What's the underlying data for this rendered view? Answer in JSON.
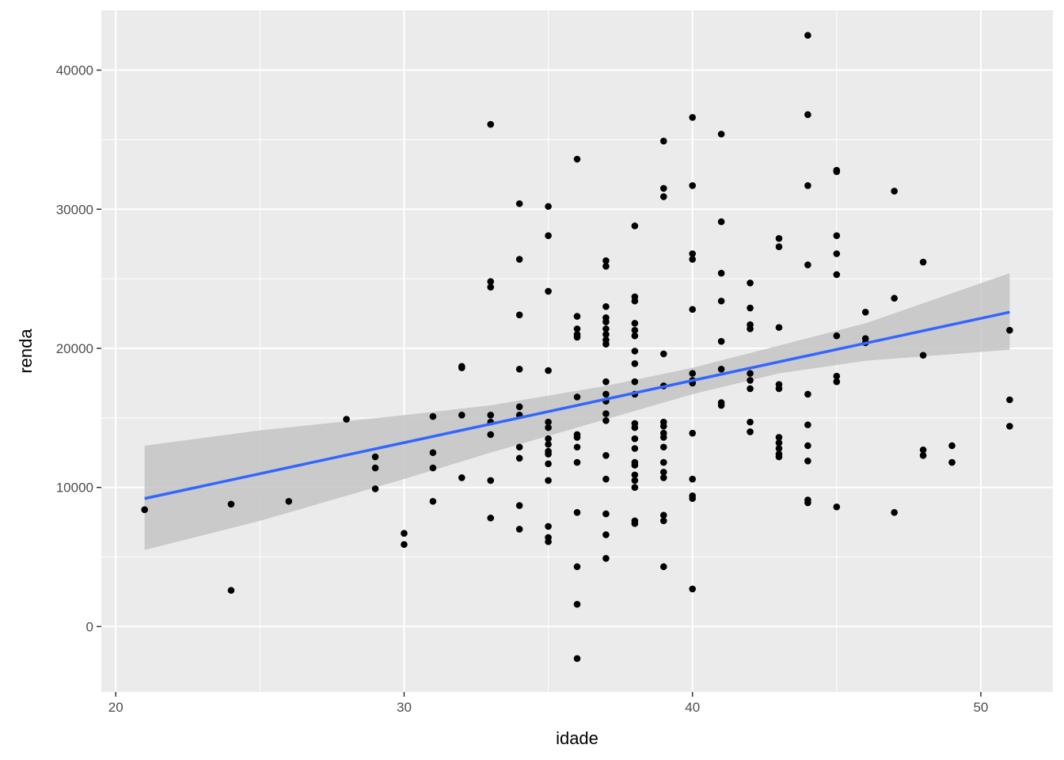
{
  "chart_data": {
    "type": "scatter",
    "title": "",
    "xlabel": "idade",
    "ylabel": "renda",
    "xlim": [
      19.5,
      52.5
    ],
    "ylim": [
      -4700,
      44300
    ],
    "x_ticks": [
      20,
      30,
      40,
      50
    ],
    "y_ticks": [
      0,
      10000,
      20000,
      30000,
      40000
    ],
    "x_tick_labels": [
      "20",
      "30",
      "40",
      "50"
    ],
    "y_tick_labels": [
      "0",
      "10000",
      "20000",
      "30000",
      "40000"
    ],
    "grid": true,
    "background": "#ebebeb",
    "point_color": "#000000",
    "points": [
      [
        21,
        8400
      ],
      [
        24,
        8800
      ],
      [
        24,
        2600
      ],
      [
        26,
        9000
      ],
      [
        28,
        14900
      ],
      [
        29,
        12200
      ],
      [
        29,
        11400
      ],
      [
        29,
        9900
      ],
      [
        30,
        6700
      ],
      [
        30,
        5900
      ],
      [
        31,
        15100
      ],
      [
        31,
        12500
      ],
      [
        31,
        11400
      ],
      [
        31,
        9000
      ],
      [
        32,
        18700
      ],
      [
        32,
        18600
      ],
      [
        32,
        15200
      ],
      [
        32,
        10700
      ],
      [
        33,
        36100
      ],
      [
        33,
        24800
      ],
      [
        33,
        24400
      ],
      [
        33,
        15200
      ],
      [
        33,
        14700
      ],
      [
        33,
        13800
      ],
      [
        33,
        10500
      ],
      [
        33,
        7800
      ],
      [
        34,
        30400
      ],
      [
        34,
        26400
      ],
      [
        34,
        22400
      ],
      [
        34,
        18500
      ],
      [
        34,
        15800
      ],
      [
        34,
        15200
      ],
      [
        34,
        12900
      ],
      [
        34,
        12100
      ],
      [
        34,
        8700
      ],
      [
        34,
        7000
      ],
      [
        35,
        30200
      ],
      [
        35,
        28100
      ],
      [
        35,
        24100
      ],
      [
        35,
        18400
      ],
      [
        35,
        14700
      ],
      [
        35,
        14300
      ],
      [
        35,
        13500
      ],
      [
        35,
        13100
      ],
      [
        35,
        12600
      ],
      [
        35,
        12400
      ],
      [
        35,
        11700
      ],
      [
        35,
        10500
      ],
      [
        35,
        7200
      ],
      [
        35,
        6400
      ],
      [
        35,
        6100
      ],
      [
        36,
        33600
      ],
      [
        36,
        22300
      ],
      [
        36,
        21400
      ],
      [
        36,
        21000
      ],
      [
        36,
        20800
      ],
      [
        36,
        16500
      ],
      [
        36,
        13800
      ],
      [
        36,
        13600
      ],
      [
        36,
        12900
      ],
      [
        36,
        11800
      ],
      [
        36,
        8200
      ],
      [
        36,
        4300
      ],
      [
        36,
        1600
      ],
      [
        36,
        -2300
      ],
      [
        37,
        26300
      ],
      [
        37,
        25900
      ],
      [
        37,
        23000
      ],
      [
        37,
        22200
      ],
      [
        37,
        21900
      ],
      [
        37,
        21400
      ],
      [
        37,
        21000
      ],
      [
        37,
        20600
      ],
      [
        37,
        20300
      ],
      [
        37,
        17600
      ],
      [
        37,
        16700
      ],
      [
        37,
        16200
      ],
      [
        37,
        15300
      ],
      [
        37,
        14800
      ],
      [
        37,
        12300
      ],
      [
        37,
        10600
      ],
      [
        37,
        8100
      ],
      [
        37,
        6600
      ],
      [
        37,
        4900
      ],
      [
        38,
        28800
      ],
      [
        38,
        23700
      ],
      [
        38,
        23400
      ],
      [
        38,
        21800
      ],
      [
        38,
        21300
      ],
      [
        38,
        20900
      ],
      [
        38,
        19800
      ],
      [
        38,
        18900
      ],
      [
        38,
        17600
      ],
      [
        38,
        16700
      ],
      [
        38,
        14600
      ],
      [
        38,
        14300
      ],
      [
        38,
        13500
      ],
      [
        38,
        12800
      ],
      [
        38,
        11800
      ],
      [
        38,
        11600
      ],
      [
        38,
        10900
      ],
      [
        38,
        10500
      ],
      [
        38,
        10000
      ],
      [
        38,
        7600
      ],
      [
        38,
        7400
      ],
      [
        39,
        34900
      ],
      [
        39,
        31500
      ],
      [
        39,
        30900
      ],
      [
        39,
        19600
      ],
      [
        39,
        17300
      ],
      [
        39,
        14700
      ],
      [
        39,
        14400
      ],
      [
        39,
        13900
      ],
      [
        39,
        13600
      ],
      [
        39,
        12900
      ],
      [
        39,
        11800
      ],
      [
        39,
        11100
      ],
      [
        39,
        10700
      ],
      [
        39,
        8000
      ],
      [
        39,
        7600
      ],
      [
        39,
        4300
      ],
      [
        40,
        36600
      ],
      [
        40,
        31700
      ],
      [
        40,
        26800
      ],
      [
        40,
        26400
      ],
      [
        40,
        22800
      ],
      [
        40,
        18200
      ],
      [
        40,
        17700
      ],
      [
        40,
        17500
      ],
      [
        40,
        13900
      ],
      [
        40,
        10600
      ],
      [
        40,
        9400
      ],
      [
        40,
        9200
      ],
      [
        40,
        2700
      ],
      [
        41,
        35400
      ],
      [
        41,
        29100
      ],
      [
        41,
        25400
      ],
      [
        41,
        23400
      ],
      [
        41,
        20500
      ],
      [
        41,
        18500
      ],
      [
        41,
        16100
      ],
      [
        41,
        15900
      ],
      [
        42,
        24700
      ],
      [
        42,
        22900
      ],
      [
        42,
        21700
      ],
      [
        42,
        21400
      ],
      [
        42,
        18200
      ],
      [
        42,
        17700
      ],
      [
        42,
        17100
      ],
      [
        42,
        14700
      ],
      [
        42,
        14000
      ],
      [
        43,
        27900
      ],
      [
        43,
        27300
      ],
      [
        43,
        21500
      ],
      [
        43,
        17400
      ],
      [
        43,
        17100
      ],
      [
        43,
        13600
      ],
      [
        43,
        13200
      ],
      [
        43,
        12800
      ],
      [
        43,
        12400
      ],
      [
        43,
        12200
      ],
      [
        44,
        42500
      ],
      [
        44,
        36800
      ],
      [
        44,
        31700
      ],
      [
        44,
        26000
      ],
      [
        44,
        16700
      ],
      [
        44,
        14500
      ],
      [
        44,
        13000
      ],
      [
        44,
        11900
      ],
      [
        44,
        9100
      ],
      [
        44,
        8900
      ],
      [
        45,
        32800
      ],
      [
        45,
        32700
      ],
      [
        45,
        28100
      ],
      [
        45,
        26800
      ],
      [
        45,
        25300
      ],
      [
        45,
        20900
      ],
      [
        45,
        18000
      ],
      [
        45,
        17600
      ],
      [
        45,
        8600
      ],
      [
        46,
        22600
      ],
      [
        46,
        20700
      ],
      [
        46,
        20400
      ],
      [
        47,
        31300
      ],
      [
        47,
        23600
      ],
      [
        47,
        8200
      ],
      [
        48,
        26200
      ],
      [
        48,
        19500
      ],
      [
        48,
        12700
      ],
      [
        48,
        12300
      ],
      [
        49,
        13000
      ],
      [
        49,
        11800
      ],
      [
        51,
        21300
      ],
      [
        51,
        16300
      ],
      [
        51,
        14400
      ]
    ],
    "fit_line": {
      "color": "#3366ff",
      "x": [
        21,
        51
      ],
      "y": [
        9200,
        22600
      ]
    },
    "confidence_band": {
      "color": "#c4c4c4",
      "x": [
        21,
        25,
        30,
        33,
        35,
        37,
        40,
        43,
        46,
        51
      ],
      "upper": [
        13000,
        14100,
        15200,
        15900,
        16600,
        17300,
        18600,
        20200,
        21800,
        25400
      ],
      "lower": [
        5500,
        7600,
        10600,
        12500,
        13700,
        14900,
        16700,
        18200,
        19100,
        19900
      ]
    }
  }
}
